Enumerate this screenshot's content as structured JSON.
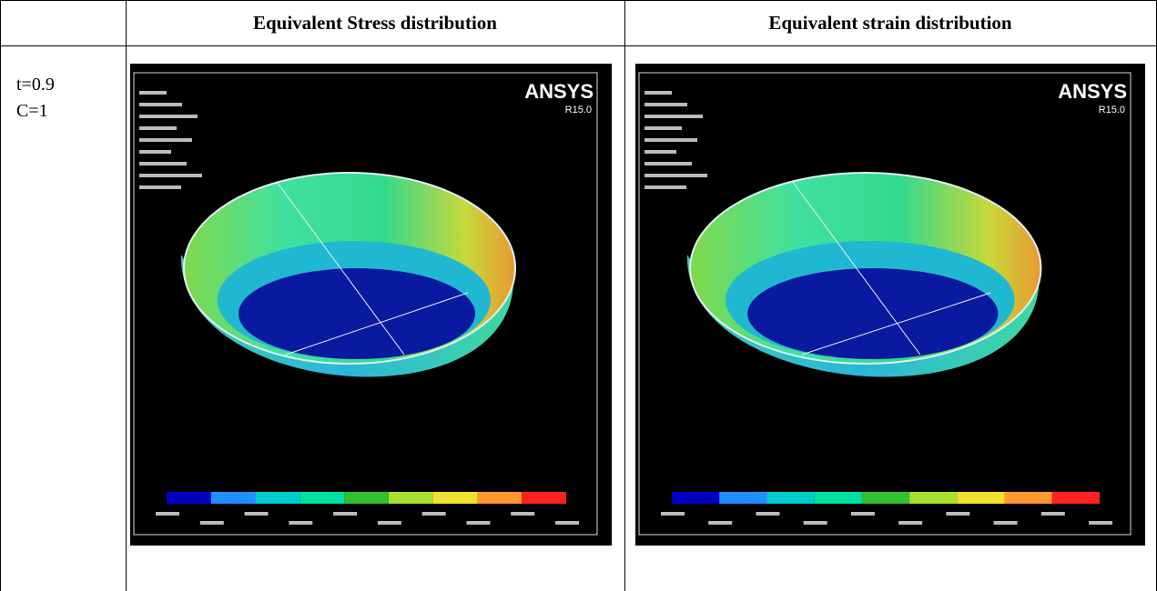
{
  "table": {
    "header": [
      "Equivalent Stress distribution",
      "Equivalent strain distribution"
    ],
    "rows": [
      {
        "label": [
          "t=0.9",
          "C=1"
        ],
        "images": [
          {
            "logo": "ANSYS",
            "version": "R15.0"
          },
          {
            "logo": "ANSYS",
            "version": "R15.0"
          }
        ]
      }
    ]
  }
}
